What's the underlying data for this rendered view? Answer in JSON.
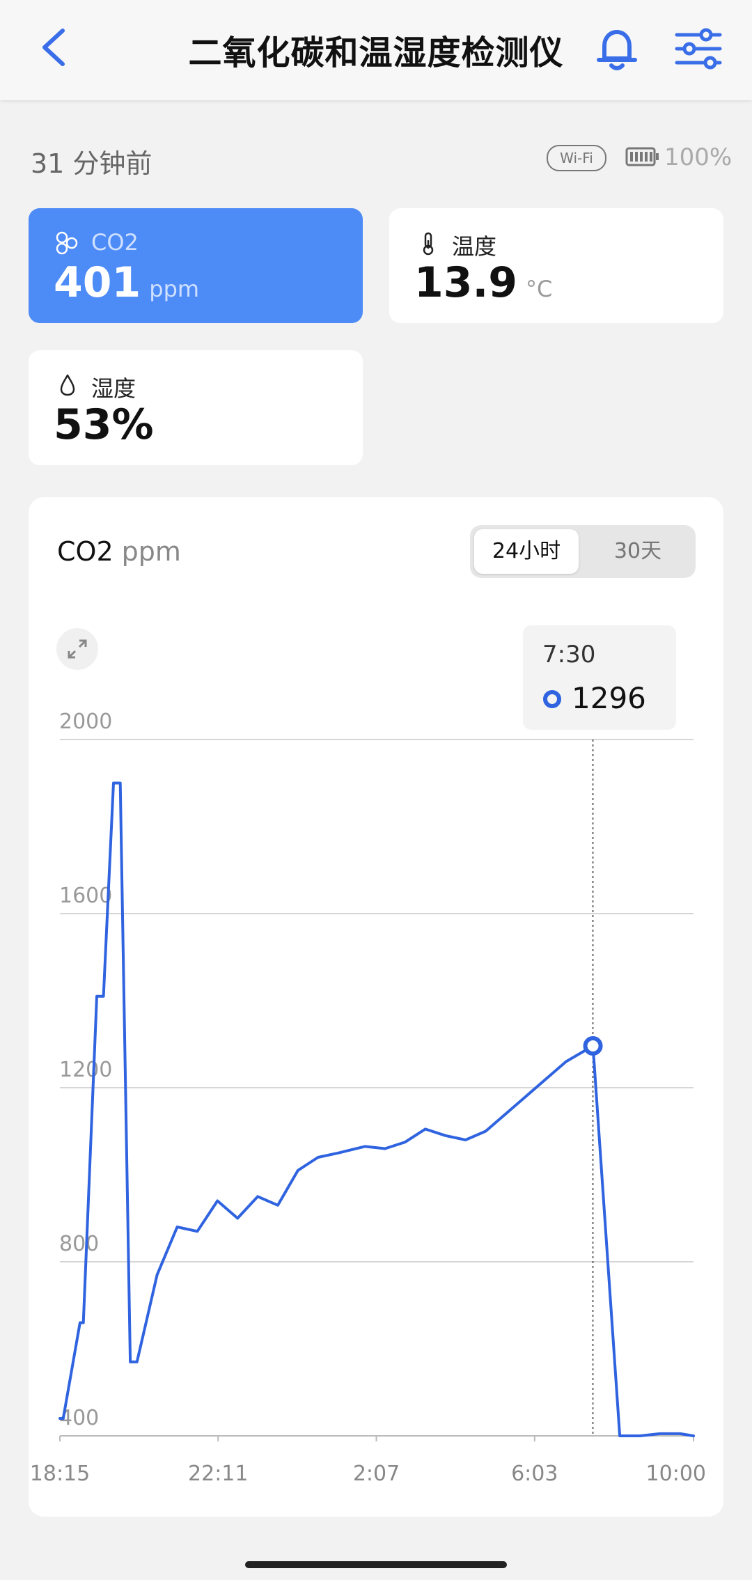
{
  "header": {
    "title": "二氧化碳和温湿度检测仪",
    "back_icon": "chevron-left-icon",
    "bell_icon": "bell-icon",
    "settings_icon": "sliders-icon"
  },
  "status": {
    "updated": "31 分钟前",
    "wifi_label": "Wi-Fi",
    "battery": "100%"
  },
  "cards": {
    "co2": {
      "label": "CO2",
      "value": "401",
      "unit": "ppm"
    },
    "temperature": {
      "label": "温度",
      "value": "13.9",
      "unit": "°C"
    },
    "humidity": {
      "label": "湿度",
      "value": "53%"
    }
  },
  "chart_section": {
    "title": "CO2",
    "unit": "ppm",
    "ranges": [
      "24小时",
      "30天"
    ],
    "selected_range": "24小时",
    "tooltip": {
      "time": "7:30",
      "value": "1296"
    }
  },
  "colors": {
    "accent": "#3a6ee8",
    "card_active": "#4d8bf7",
    "line": "#2f63df"
  },
  "chart_data": {
    "type": "line",
    "x_ticks": [
      "18:15",
      "22:11",
      "2:07",
      "6:03",
      "10:00"
    ],
    "y_ticks": [
      "2000",
      "1600",
      "1200",
      "800",
      "400"
    ],
    "ylim": [
      400,
      2000
    ],
    "grid": true,
    "series": [
      {
        "points": [
          [
            "18:15",
            440
          ],
          [
            "18:20",
            440
          ],
          [
            "18:45",
            660
          ],
          [
            "18:50",
            660
          ],
          [
            "19:10",
            1410
          ],
          [
            "19:20",
            1410
          ],
          [
            "19:35",
            1900
          ],
          [
            "19:45",
            1900
          ],
          [
            "20:00",
            570
          ],
          [
            "20:10",
            570
          ],
          [
            "20:40",
            770
          ],
          [
            "21:10",
            880
          ],
          [
            "21:40",
            870
          ],
          [
            "22:10",
            940
          ],
          [
            "22:40",
            900
          ],
          [
            "23:10",
            950
          ],
          [
            "23:40",
            930
          ],
          [
            "0:10",
            1010
          ],
          [
            "0:40",
            1040
          ],
          [
            "1:10",
            1050
          ],
          [
            "1:50",
            1065
          ],
          [
            "2:20",
            1060
          ],
          [
            "2:50",
            1075
          ],
          [
            "3:20",
            1105
          ],
          [
            "3:50",
            1090
          ],
          [
            "4:20",
            1080
          ],
          [
            "4:50",
            1100
          ],
          [
            "5:20",
            1140
          ],
          [
            "5:50",
            1180
          ],
          [
            "6:20",
            1220
          ],
          [
            "6:50",
            1260
          ],
          [
            "7:30",
            1296
          ],
          [
            "8:10",
            400
          ],
          [
            "8:40",
            400
          ],
          [
            "9:10",
            405
          ],
          [
            "9:40",
            405
          ],
          [
            "10:00",
            400
          ]
        ]
      }
    ],
    "highlight": {
      "x": "7:30",
      "y": 1296
    }
  }
}
